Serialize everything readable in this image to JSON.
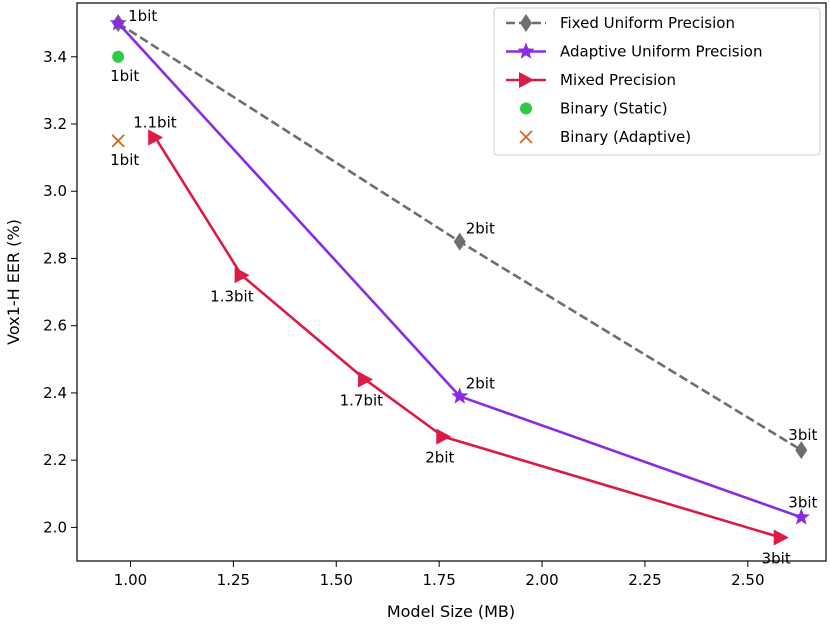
{
  "chart_data": {
    "type": "line",
    "title": "",
    "xlabel": "Model Size (MB)",
    "ylabel": "Vox1-H EER (%)",
    "xlim": [
      0.87,
      2.69
    ],
    "ylim": [
      1.9,
      3.56
    ],
    "xticks": [
      1.0,
      1.25,
      1.5,
      1.75,
      2.0,
      2.25,
      2.5
    ],
    "xtick_labels": [
      "1.00",
      "1.25",
      "1.50",
      "1.75",
      "2.00",
      "2.25",
      "2.50"
    ],
    "yticks": [
      2.0,
      2.2,
      2.4,
      2.6,
      2.8,
      3.0,
      3.2,
      3.4
    ],
    "ytick_labels": [
      "2.0",
      "2.2",
      "2.4",
      "2.6",
      "2.8",
      "3.0",
      "3.2",
      "3.4"
    ],
    "grid": false,
    "legend_position": "top-right",
    "series": [
      {
        "name": "Fixed Uniform Precision",
        "color": "#6e6e6e",
        "line_style": "dashed",
        "marker": "diamond",
        "x": [
          0.97,
          1.8,
          2.63
        ],
        "y": [
          3.5,
          2.85,
          2.23
        ]
      },
      {
        "name": "Adaptive Uniform Precision",
        "color": "#8a2be2",
        "line_style": "solid",
        "marker": "star",
        "x": [
          0.97,
          1.8,
          2.63
        ],
        "y": [
          3.5,
          2.39,
          2.03
        ]
      },
      {
        "name": "Mixed Precision",
        "color": "#dc1a46",
        "line_style": "solid",
        "marker": "triangle-right",
        "x": [
          1.06,
          1.27,
          1.57,
          1.76,
          2.58
        ],
        "y": [
          3.16,
          2.75,
          2.44,
          2.27,
          1.97
        ]
      },
      {
        "name": "Binary (Static)",
        "color": "#2ecc40",
        "line_style": "none",
        "marker": "circle",
        "x": [
          0.97
        ],
        "y": [
          3.4
        ]
      },
      {
        "name": "Binary (Adaptive)",
        "color": "#d2691e",
        "line_style": "none",
        "marker": "x",
        "x": [
          0.97
        ],
        "y": [
          3.15
        ]
      }
    ],
    "annotations": [
      {
        "text": "1bit",
        "x": 0.97,
        "y": 3.5,
        "anchor": "right"
      },
      {
        "text": "1bit",
        "x": 0.97,
        "y": 3.4,
        "anchor": "below"
      },
      {
        "text": "1bit",
        "x": 0.97,
        "y": 3.15,
        "anchor": "below"
      },
      {
        "text": "1.1bit",
        "x": 1.06,
        "y": 3.16,
        "anchor": "above"
      },
      {
        "text": "1.3bit",
        "x": 1.27,
        "y": 2.75,
        "anchor": "below-left"
      },
      {
        "text": "1.7bit",
        "x": 1.57,
        "y": 2.44,
        "anchor": "below-left"
      },
      {
        "text": "2bit",
        "x": 1.76,
        "y": 2.27,
        "anchor": "below"
      },
      {
        "text": "2bit",
        "x": 1.8,
        "y": 2.85,
        "anchor": "above-right"
      },
      {
        "text": "2bit",
        "x": 1.8,
        "y": 2.39,
        "anchor": "above-right"
      },
      {
        "text": "3bit",
        "x": 2.63,
        "y": 2.23,
        "anchor": "above"
      },
      {
        "text": "3bit",
        "x": 2.63,
        "y": 2.03,
        "anchor": "above"
      },
      {
        "text": "3bit",
        "x": 2.58,
        "y": 1.97,
        "anchor": "below-left"
      }
    ]
  }
}
